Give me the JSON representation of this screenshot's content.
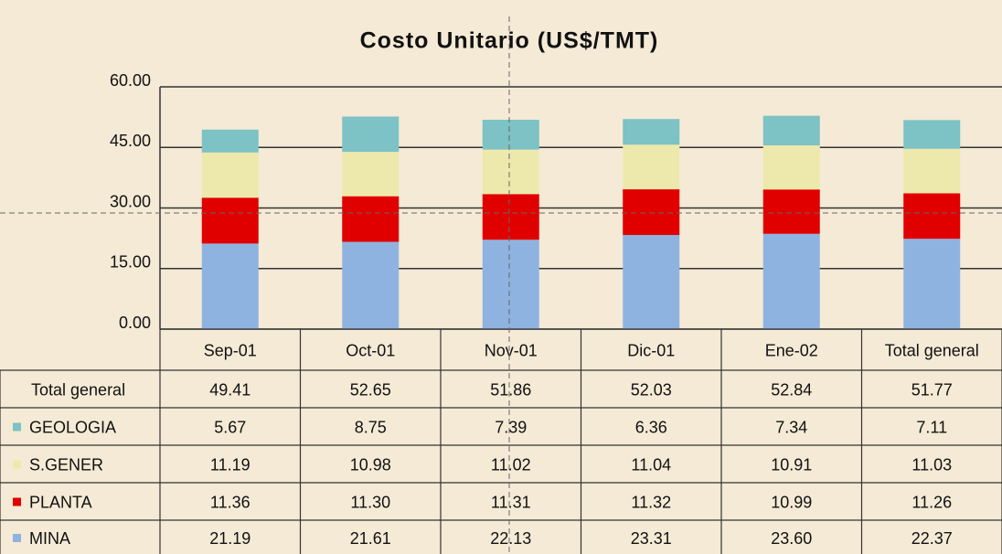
{
  "chart_data": {
    "type": "stacked_bar",
    "title": "Costo Unitario (US$/TMT)",
    "categories": [
      "Sep-01",
      "Oct-01",
      "Nov-01",
      "Dic-01",
      "Ene-02",
      "Total general"
    ],
    "series": [
      {
        "name": "MINA",
        "color": "#8fb3e0",
        "values": [
          21.19,
          21.61,
          22.13,
          23.31,
          23.6,
          22.37
        ],
        "value_labels": [
          "21.19",
          "21.61",
          "22.13",
          "23.31",
          "23.60",
          "22.37"
        ]
      },
      {
        "name": "PLANTA",
        "color": "#e00000",
        "values": [
          11.36,
          11.3,
          11.31,
          11.32,
          10.99,
          11.26
        ],
        "value_labels": [
          "11.36",
          "11.30",
          "11.31",
          "11.32",
          "10.99",
          "11.26"
        ]
      },
      {
        "name": "S.GENER",
        "color": "#ede9ad",
        "values": [
          11.19,
          10.98,
          11.02,
          11.04,
          10.91,
          11.03
        ],
        "value_labels": [
          "11.19",
          "10.98",
          "11.02",
          "11.04",
          "10.91",
          "11.03"
        ]
      },
      {
        "name": "GEOLOGIA",
        "color": "#7dc2c4",
        "values": [
          5.67,
          8.75,
          7.39,
          6.36,
          7.34,
          7.11
        ],
        "value_labels": [
          "5.67",
          "8.75",
          "7.39",
          "6.36",
          "7.34",
          "7.11"
        ]
      }
    ],
    "totals": {
      "name": "Total general",
      "values": [
        49.41,
        52.65,
        51.86,
        52.03,
        52.84,
        51.77
      ]
    },
    "ylim": [
      0,
      60
    ],
    "yticks": [
      {
        "value": 0,
        "label": "0.00"
      },
      {
        "value": 15,
        "label": "15.00"
      },
      {
        "value": 30,
        "label": "30.00"
      },
      {
        "value": 45,
        "label": "45.00"
      },
      {
        "value": 60,
        "label": "60.00"
      }
    ],
    "grid": true
  }
}
